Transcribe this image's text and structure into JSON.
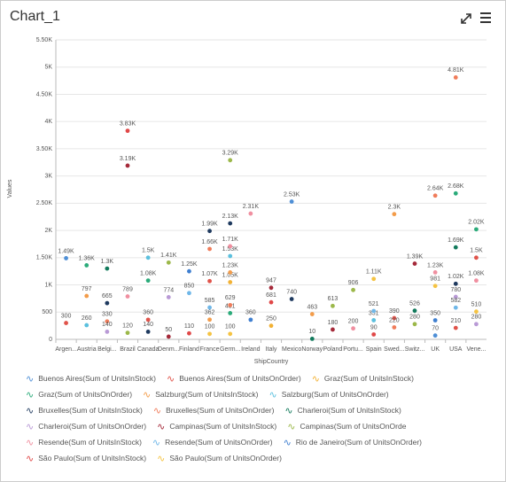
{
  "chart_data": {
    "type": "scatter",
    "title": "Chart_1",
    "x_label": "ShipCountry",
    "y_label": "Values",
    "categories": [
      "Argen...",
      "Austria",
      "Belgi...",
      "Brazil",
      "Canada",
      "Denm...",
      "Finland",
      "France",
      "Germ...",
      "Ireland",
      "Italy",
      "Mexico",
      "Norway",
      "Poland",
      "Portu...",
      "Spain",
      "Swed...",
      "Switz...",
      "UK",
      "USA",
      "Vene..."
    ],
    "ylim": [
      0,
      5500
    ],
    "yticks": [
      0,
      500,
      {
        "value": 1000,
        "label": "1K"
      },
      {
        "value": 1500,
        "label": "1.50K"
      },
      {
        "value": 2000,
        "label": "2K"
      },
      {
        "value": 2500,
        "label": "2.50K"
      },
      {
        "value": 3000,
        "label": "3K"
      },
      {
        "value": 3500,
        "label": "3.50K"
      },
      {
        "value": 4000,
        "label": "4K"
      },
      {
        "value": 4500,
        "label": "4.50K"
      },
      {
        "value": 5000,
        "label": "5K"
      },
      {
        "value": 5500,
        "label": "5.50K"
      }
    ],
    "grid": true,
    "series": [
      {
        "name": "Buenos Aires(Sum of UnitsInStock)",
        "color": "#4e8fd6",
        "values": [
          1490,
          null,
          null,
          null,
          null,
          null,
          null,
          null,
          null,
          null,
          null,
          2530,
          null,
          null,
          null,
          null,
          null,
          null,
          70,
          null,
          null
        ],
        "value_labels": [
          "1.49K",
          null,
          null,
          null,
          null,
          null,
          null,
          null,
          null,
          null,
          null,
          "2.53K",
          null,
          null,
          null,
          null,
          null,
          null,
          "70",
          null,
          null
        ]
      },
      {
        "name": "Buenos Aires(Sum of UnitsOnOrder)",
        "color": "#e0534a",
        "values": [
          300,
          null,
          null,
          null,
          360,
          null,
          null,
          1070,
          null,
          null,
          null,
          null,
          null,
          null,
          null,
          null,
          390,
          null,
          null,
          210,
          1500
        ],
        "value_labels": [
          "300",
          null,
          null,
          null,
          "360",
          null,
          null,
          "1.07K",
          null,
          null,
          null,
          null,
          null,
          null,
          null,
          null,
          "390",
          null,
          null,
          "210",
          "1.5K"
        ]
      },
      {
        "name": "Graz(Sum of UnitsInStock)",
        "color": "#f2b134",
        "values": [
          null,
          null,
          null,
          null,
          null,
          null,
          null,
          null,
          1050,
          null,
          250,
          null,
          null,
          null,
          null,
          null,
          null,
          null,
          null,
          null,
          null
        ],
        "value_labels": [
          null,
          null,
          null,
          null,
          null,
          null,
          null,
          null,
          "1.05K",
          null,
          "250",
          null,
          null,
          null,
          null,
          null,
          null,
          null,
          null,
          null,
          null
        ]
      },
      {
        "name": "Graz(Sum of UnitsOnOrder)",
        "color": "#2bab7a",
        "values": [
          null,
          1360,
          null,
          null,
          1080,
          null,
          null,
          null,
          481,
          null,
          null,
          null,
          null,
          null,
          null,
          null,
          null,
          null,
          null,
          2680,
          2020
        ],
        "value_labels": [
          null,
          "1.36K",
          null,
          null,
          "1.08K",
          null,
          null,
          null,
          "481",
          null,
          null,
          null,
          null,
          null,
          null,
          null,
          null,
          null,
          null,
          "2.68K",
          "2.02K"
        ]
      },
      {
        "name": "Salzburg(Sum of UnitsInStock)",
        "color": "#f39c4a",
        "values": [
          null,
          797,
          null,
          null,
          null,
          null,
          null,
          362,
          1230,
          null,
          null,
          null,
          463,
          null,
          null,
          null,
          2300,
          null,
          null,
          null,
          null
        ],
        "value_labels": [
          null,
          "797",
          null,
          null,
          null,
          null,
          null,
          "362",
          "1.23K",
          null,
          null,
          null,
          "463",
          null,
          null,
          null,
          "2.3K",
          null,
          null,
          null,
          null
        ]
      },
      {
        "name": "Salzburg(Sum of UnitsOnOrder)",
        "color": "#5bc0de",
        "values": [
          null,
          260,
          null,
          null,
          1500,
          null,
          null,
          null,
          1530,
          null,
          null,
          null,
          null,
          null,
          null,
          351,
          null,
          null,
          null,
          null,
          null
        ],
        "value_labels": [
          null,
          "260",
          null,
          null,
          "1.5K",
          null,
          null,
          null,
          "1.53K",
          null,
          null,
          null,
          null,
          null,
          null,
          "351",
          null,
          null,
          null,
          null,
          null
        ]
      },
      {
        "name": "Bruxelles(Sum of UnitsInStock)",
        "color": "#1f3a5f",
        "values": [
          null,
          null,
          665,
          null,
          140,
          null,
          null,
          1990,
          2130,
          null,
          null,
          740,
          null,
          null,
          null,
          null,
          null,
          null,
          null,
          1020,
          null
        ],
        "value_labels": [
          null,
          null,
          "665",
          null,
          "140",
          null,
          null,
          "1.99K",
          "2.13K",
          null,
          null,
          "740",
          null,
          null,
          null,
          null,
          null,
          null,
          null,
          "1.02K",
          null
        ]
      },
      {
        "name": "Bruxelles(Sum of UnitsOnOrder)",
        "color": "#f07c5a",
        "values": [
          null,
          null,
          330,
          null,
          null,
          null,
          null,
          1660,
          629,
          null,
          null,
          null,
          null,
          null,
          null,
          null,
          220,
          null,
          2640,
          4810,
          null
        ],
        "value_labels": [
          null,
          null,
          "330",
          null,
          null,
          null,
          null,
          "1.66K",
          "629",
          null,
          null,
          null,
          null,
          null,
          null,
          null,
          "220",
          null,
          "2.64K",
          "4.81K",
          null
        ]
      },
      {
        "name": "Charleroi(Sum of UnitsInStock)",
        "color": "#127a5c",
        "values": [
          null,
          null,
          1300,
          null,
          null,
          null,
          null,
          null,
          null,
          null,
          null,
          null,
          10,
          null,
          null,
          null,
          null,
          526,
          null,
          1690,
          null
        ],
        "value_labels": [
          null,
          null,
          "1.3K",
          null,
          null,
          null,
          null,
          null,
          null,
          null,
          null,
          null,
          "10",
          null,
          null,
          null,
          null,
          "526",
          null,
          "1.69K",
          null
        ]
      },
      {
        "name": "Charleroi(Sum of UnitsOnOrder)",
        "color": "#b99ad6",
        "values": [
          null,
          null,
          140,
          null,
          null,
          774,
          null,
          null,
          null,
          null,
          null,
          null,
          null,
          null,
          null,
          null,
          null,
          null,
          null,
          780,
          280
        ],
        "value_labels": [
          null,
          null,
          "140",
          null,
          null,
          "774",
          null,
          null,
          null,
          null,
          null,
          null,
          null,
          null,
          null,
          null,
          null,
          null,
          null,
          "780",
          "280"
        ]
      },
      {
        "name": "Campinas(Sum of UnitsInStock)",
        "color": "#a52a3a",
        "values": [
          null,
          null,
          null,
          3190,
          null,
          50,
          null,
          null,
          null,
          null,
          947,
          null,
          null,
          180,
          null,
          null,
          null,
          1390,
          null,
          null,
          null
        ],
        "value_labels": [
          null,
          null,
          null,
          "3.19K",
          null,
          "50",
          null,
          null,
          null,
          null,
          "947",
          null,
          null,
          "180",
          null,
          null,
          null,
          "1.39K",
          null,
          null,
          null
        ]
      },
      {
        "name": "Campinas(Sum of UnitsOnOrde",
        "color": "#9cb84a",
        "values": [
          null,
          null,
          null,
          120,
          null,
          1410,
          null,
          null,
          3290,
          null,
          null,
          null,
          null,
          613,
          906,
          null,
          null,
          280,
          null,
          null,
          null
        ],
        "value_labels": [
          null,
          null,
          null,
          "120",
          null,
          "1.41K",
          null,
          null,
          "3.29K",
          null,
          null,
          null,
          null,
          "613",
          "906",
          null,
          null,
          "280",
          null,
          null,
          null
        ]
      },
      {
        "name": "Resende(Sum of UnitsInStock)",
        "color": "#f08fa0",
        "values": [
          null,
          null,
          null,
          789,
          null,
          null,
          null,
          null,
          1710,
          2310,
          null,
          null,
          null,
          null,
          200,
          null,
          null,
          null,
          1230,
          null,
          1080
        ],
        "value_labels": [
          null,
          null,
          null,
          "789",
          null,
          null,
          null,
          null,
          "1.71K",
          "2.31K",
          null,
          null,
          null,
          null,
          "200",
          null,
          null,
          null,
          "1.23K",
          null,
          "1.08K"
        ]
      },
      {
        "name": "Resende(Sum of UnitsOnOrder)",
        "color": "#6fb7e8",
        "values": [
          null,
          null,
          null,
          null,
          null,
          null,
          850,
          585,
          null,
          null,
          null,
          null,
          null,
          null,
          null,
          521,
          null,
          null,
          null,
          582,
          null
        ],
        "value_labels": [
          null,
          null,
          null,
          null,
          null,
          null,
          "850",
          "585",
          null,
          null,
          null,
          null,
          null,
          null,
          null,
          "521",
          null,
          null,
          null,
          "582",
          null
        ]
      },
      {
        "name": "Rio de Janeiro(Sum of UnitsOnOrder)",
        "color": "#3f7fd0",
        "values": [
          null,
          null,
          null,
          null,
          null,
          null,
          1250,
          null,
          null,
          360,
          null,
          null,
          null,
          null,
          null,
          null,
          null,
          null,
          350,
          null,
          null
        ],
        "value_labels": [
          null,
          null,
          null,
          null,
          null,
          null,
          "1.25K",
          null,
          null,
          "360",
          null,
          null,
          null,
          null,
          null,
          null,
          null,
          null,
          "350",
          null,
          null
        ]
      },
      {
        "name": "São Paulo(Sum of UnitsInStock)",
        "color": "#e04848",
        "values": [
          null,
          null,
          null,
          3830,
          null,
          null,
          110,
          null,
          null,
          null,
          681,
          null,
          null,
          null,
          null,
          90,
          null,
          null,
          null,
          null,
          null
        ],
        "value_labels": [
          null,
          null,
          null,
          "3.83K",
          null,
          null,
          "110",
          null,
          null,
          null,
          "681",
          null,
          null,
          null,
          null,
          "90",
          null,
          null,
          null,
          null,
          null
        ]
      },
      {
        "name": "São Paulo(Sum of UnitsOnOrder)",
        "color": "#f5c342",
        "values": [
          null,
          null,
          null,
          null,
          null,
          null,
          null,
          100,
          100,
          null,
          null,
          null,
          null,
          null,
          null,
          1110,
          null,
          null,
          981,
          null,
          510
        ],
        "value_labels": [
          null,
          null,
          null,
          null,
          null,
          null,
          null,
          "100",
          "100",
          null,
          null,
          null,
          null,
          null,
          null,
          "1.11K",
          null,
          null,
          "981",
          null,
          "510"
        ]
      }
    ]
  }
}
